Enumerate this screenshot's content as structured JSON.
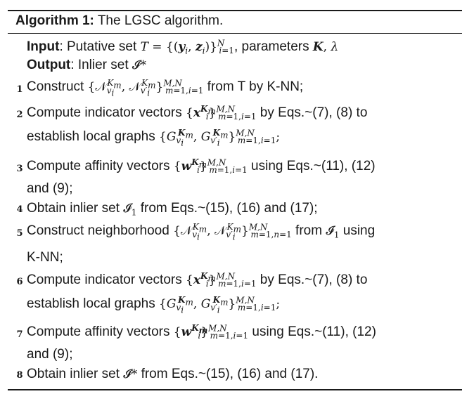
{
  "title": {
    "label": "Algorithm 1:",
    "text": "The LGSC algorithm."
  },
  "input": {
    "label": "Input",
    "text_before": ": Putative set ",
    "math_T": "T = {(y",
    "text_after": ", parameters ",
    "params": "K, λ"
  },
  "output": {
    "label": "Output",
    "text": ": Inlier set ",
    "set": "𝓘*"
  },
  "steps": [
    {
      "num": "1",
      "pre": "Construct ",
      "post": " from T by K-NN;"
    },
    {
      "num": "2",
      "pre": "Compute indicator vectors ",
      "post": " by Eqs.~(7), (8) to",
      "cont": "establish local graphs"
    },
    {
      "num": "3",
      "pre": "Compute affinity vectors ",
      "post": " using Eqs.~(11), (12)",
      "cont": "and (9);"
    },
    {
      "num": "4",
      "pre": "Obtain inlier set ",
      "post": " from Eqs.~(15), (16) and (17);"
    },
    {
      "num": "5",
      "pre": "Construct neighborhood ",
      "post": " from ",
      "post2": " using",
      "cont": "K-NN;"
    },
    {
      "num": "6",
      "pre": "Compute indicator vectors ",
      "post": " by Eqs.~(7), (8) to",
      "cont": "establish local graphs"
    },
    {
      "num": "7",
      "pre": "Compute affinity vectors ",
      "post": " using Eqs.~(11), (12)",
      "cont": "and (9);"
    },
    {
      "num": "8",
      "pre": "Obtain inlier set ",
      "post": " from Eqs.~(15), (16) and (17)."
    }
  ]
}
